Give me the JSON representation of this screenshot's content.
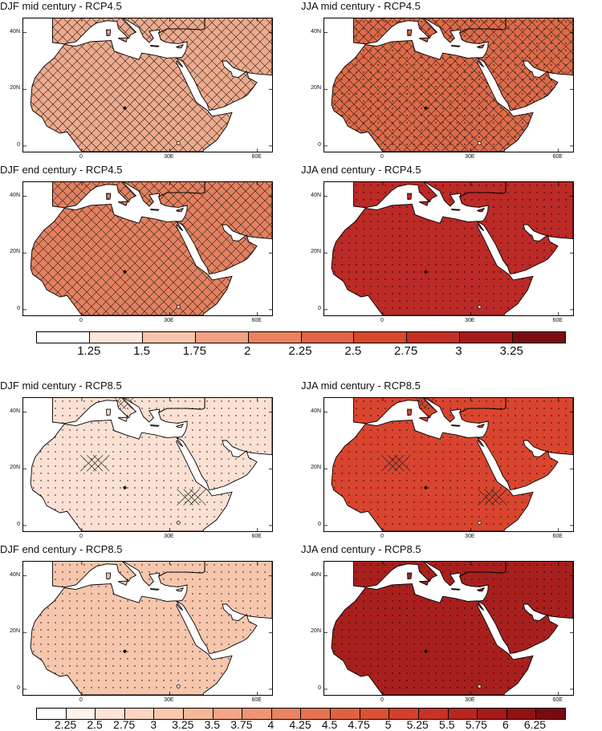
{
  "figure": {
    "panels": [
      {
        "id": "p1",
        "title": "DJF mid century - RCP4.5",
        "season": "DJF",
        "scenario": "RCP4.5",
        "period": "mid century",
        "fill": "#eeaa8c",
        "hatch": "cross",
        "dots": false
      },
      {
        "id": "p2",
        "title": "JJA mid century - RCP4.5",
        "season": "JJA",
        "scenario": "RCP4.5",
        "period": "mid century",
        "fill": "#df6a48",
        "hatch": "cross",
        "dots": true
      },
      {
        "id": "p3",
        "title": "DJF end century - RCP4.5",
        "season": "DJF",
        "scenario": "RCP4.5",
        "period": "end century",
        "fill": "#e4805e",
        "hatch": "cross",
        "dots": false
      },
      {
        "id": "p4",
        "title": "JJA end century - RCP4.5",
        "season": "JJA",
        "scenario": "RCP4.5",
        "period": "end century",
        "fill": "#bb2a26",
        "hatch": "none",
        "dots": true
      },
      {
        "id": "p5",
        "title": "DJF mid century - RCP8.5",
        "season": "DJF",
        "scenario": "RCP8.5",
        "period": "mid century",
        "fill": "#fbe1d3",
        "hatch": "sparse",
        "dots": true
      },
      {
        "id": "p6",
        "title": "JJA mid century - RCP8.5",
        "season": "JJA",
        "scenario": "RCP8.5",
        "period": "mid century",
        "fill": "#d9452f",
        "hatch": "sparse",
        "dots": true
      },
      {
        "id": "p7",
        "title": "DJF end century - RCP8.5",
        "season": "DJF",
        "scenario": "RCP8.5",
        "period": "end century",
        "fill": "#f6c6ad",
        "hatch": "none",
        "dots": true
      },
      {
        "id": "p8",
        "title": "JJA end century - RCP8.5",
        "season": "JJA",
        "scenario": "RCP8.5",
        "period": "end century",
        "fill": "#a8201e",
        "hatch": "none",
        "dots": true
      }
    ],
    "axes": {
      "lat_ticks": [
        "0",
        "20N",
        "40N"
      ],
      "lon_ticks": [
        "0",
        "30E",
        "60E"
      ],
      "lat_values": [
        0,
        20,
        40
      ],
      "lon_values": [
        0,
        30,
        60
      ],
      "lon_range": [
        -20,
        65
      ],
      "lat_range": [
        -2,
        45
      ]
    },
    "colorbars": [
      {
        "id": "rcp45",
        "labels": [
          "1.25",
          "1.5",
          "1.75",
          "2",
          "2.25",
          "2.5",
          "2.75",
          "3",
          "3.25"
        ],
        "colors": [
          "#ffffff",
          "#fde6da",
          "#f7c4ac",
          "#f1a285",
          "#e8825f",
          "#e06445",
          "#d7482f",
          "#c42f27",
          "#a6191c",
          "#7a0c12"
        ]
      },
      {
        "id": "rcp85",
        "labels": [
          "2.25",
          "2.5",
          "2.75",
          "3",
          "3.25",
          "3.5",
          "3.75",
          "4",
          "4.25",
          "4.5",
          "4.75",
          "5",
          "5.25",
          "5.5",
          "5.75",
          "6",
          "6.25"
        ],
        "colors": [
          "#ffffff",
          "#fef2eb",
          "#fde4d6",
          "#fbd6c2",
          "#f8c7ae",
          "#f5b79a",
          "#f2a687",
          "#ee9574",
          "#ea8462",
          "#e57352",
          "#e06243",
          "#da5136",
          "#d2412c",
          "#c63325",
          "#b7261f",
          "#a51b1a",
          "#901215",
          "#7a0a11"
        ]
      }
    ]
  }
}
